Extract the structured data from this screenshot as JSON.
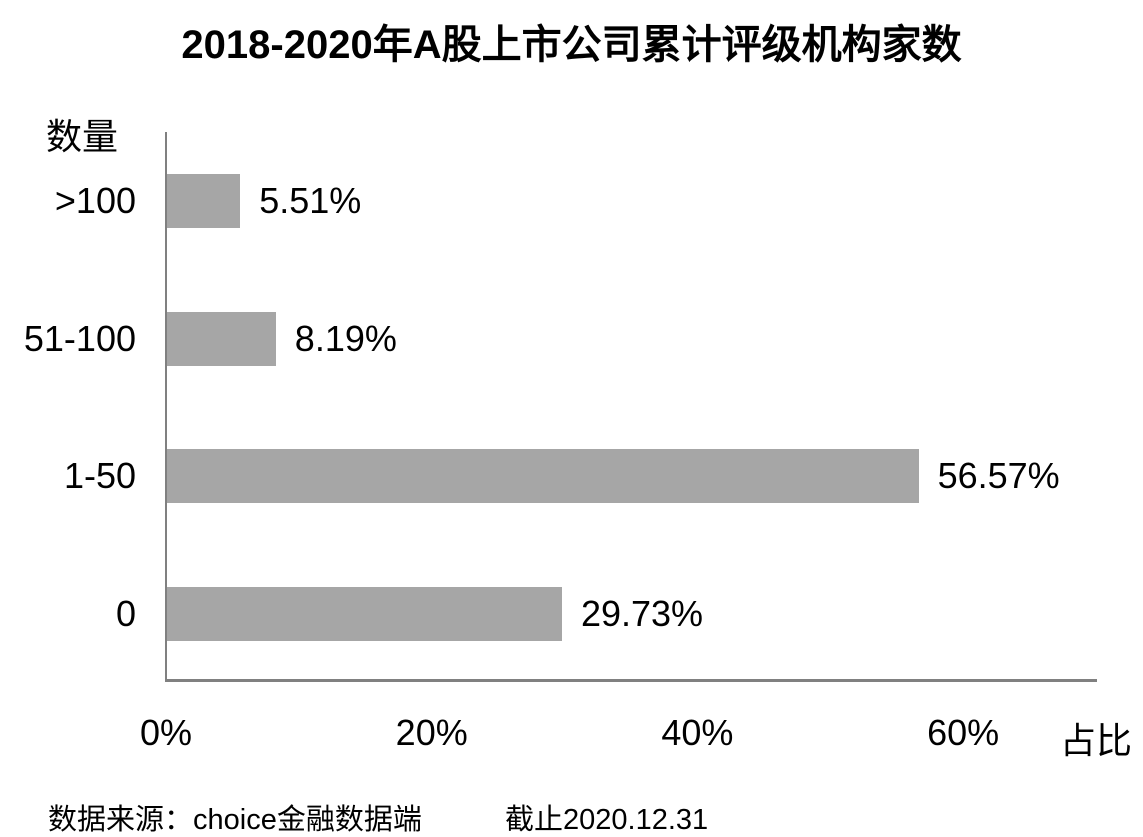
{
  "title": "2018-2020年A股上市公司累计评级机构家数",
  "colors": {
    "bar": "#a6a6a6",
    "axis": "#808080",
    "text": "#000000",
    "background": "#ffffff"
  },
  "chart_data": {
    "type": "bar",
    "orientation": "horizontal",
    "title": "2018-2020年A股上市公司累计评级机构家数",
    "ylabel": "数量",
    "xlabel": "占比",
    "categories": [
      ">100",
      "51-100",
      "1-50",
      "0"
    ],
    "values": [
      5.51,
      8.19,
      56.57,
      29.73
    ],
    "value_labels": [
      "5.51%",
      "8.19%",
      "56.57%",
      "29.73%"
    ],
    "x_tick_values": [
      0,
      20,
      40,
      60
    ],
    "x_tick_labels": [
      "0%",
      "20%",
      "40%",
      "60%"
    ],
    "xlim": [
      0,
      70
    ],
    "grid": false,
    "legend": false,
    "bar_color": "#a6a6a6"
  },
  "footer": {
    "source": "数据来源：choice金融数据端",
    "cutoff": "截止2020.12.31"
  }
}
